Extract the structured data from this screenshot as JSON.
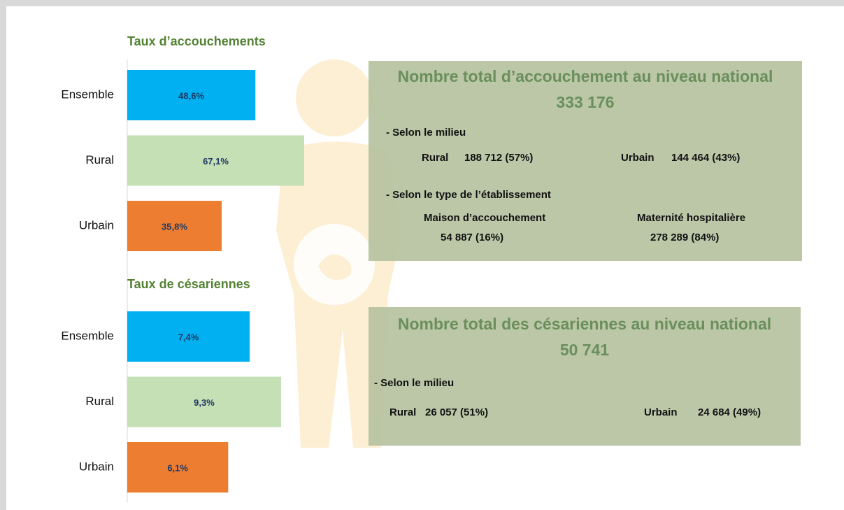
{
  "chart_data": [
    {
      "type": "bar",
      "orientation": "horizontal",
      "title": "Taux d’accouchements",
      "categories": [
        "Ensemble",
        "Rural",
        "Urbain"
      ],
      "values": [
        48.6,
        67.1,
        35.8
      ],
      "value_labels": [
        "48,6%",
        "67,1%",
        "35,8%"
      ],
      "colors": [
        "#00b0f0",
        "#c5e0b4",
        "#ed7d31"
      ]
    },
    {
      "type": "bar",
      "orientation": "horizontal",
      "title": "Taux de césariennes",
      "categories": [
        "Ensemble",
        "Rural",
        "Urbain"
      ],
      "values": [
        7.4,
        9.3,
        6.1
      ],
      "value_labels": [
        "7,4%",
        "9,3%",
        "6,1%"
      ],
      "colors": [
        "#00b0f0",
        "#c5e0b4",
        "#ed7d31"
      ]
    }
  ],
  "boxes": [
    {
      "title": "Nombre total d’accouchement au niveau national",
      "total": "333 176",
      "sections": [
        {
          "heading": "- Selon le milieu",
          "items": [
            {
              "label": "Rural",
              "value": "188 712 (57%)"
            },
            {
              "label": "Urbain",
              "value": "144 464 (43%)"
            }
          ]
        },
        {
          "heading": "- Selon le type de l’établissement",
          "items": [
            {
              "label": "Maison d’accouchement",
              "value": "54 887 (16%)"
            },
            {
              "label": "Maternité hospitalière",
              "value": "278 289 (84%)"
            }
          ]
        }
      ]
    },
    {
      "title": "Nombre total des césariennes au niveau national",
      "total": "50 741",
      "sections": [
        {
          "heading": "- Selon le milieu",
          "items": [
            {
              "label": "Rural",
              "value": "26 057 (51%)"
            },
            {
              "label": "Urbain",
              "value": "24 684 (49%)"
            }
          ]
        }
      ]
    }
  ]
}
